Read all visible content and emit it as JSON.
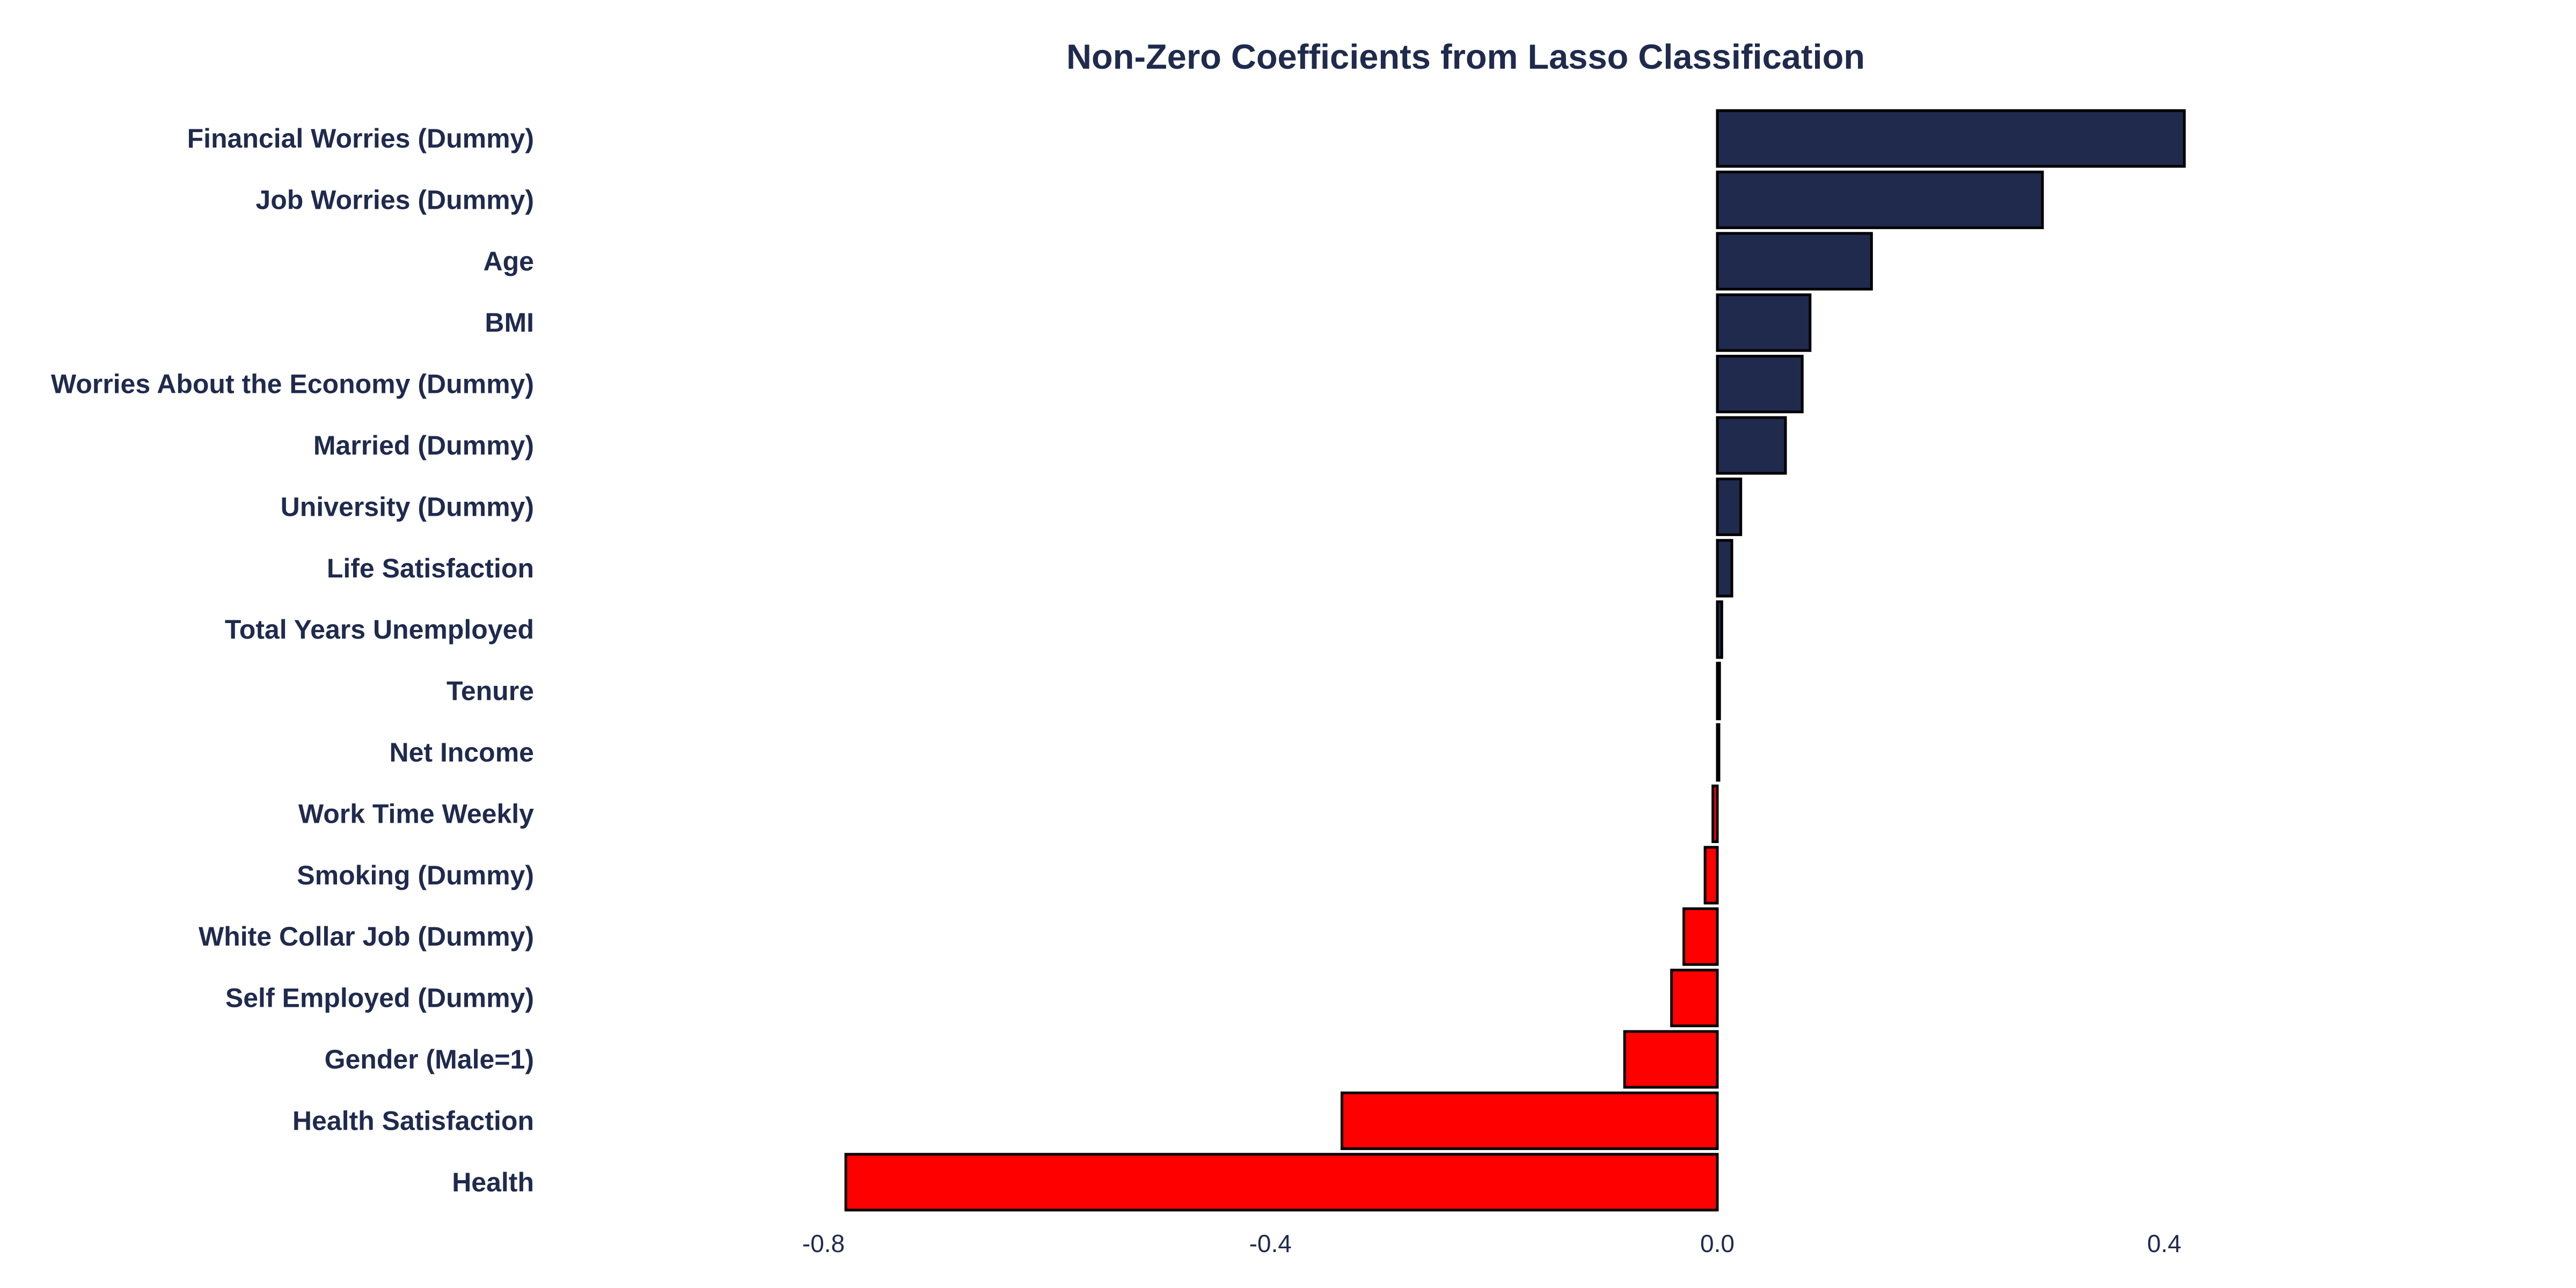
{
  "chart_data": {
    "type": "bar",
    "orientation": "horizontal",
    "title": "Non-Zero Coefficients from Lasso Classification",
    "xlabel": "",
    "ylabel": "",
    "xlim": [
      -0.8,
      0.6
    ],
    "xticks": [
      -0.8,
      -0.4,
      0.0,
      0.4
    ],
    "xtick_labels": [
      "-0.8",
      "-0.4",
      "0.0",
      "0.4"
    ],
    "grid": false,
    "legend": "none",
    "categories": [
      "Financial Worries (Dummy)",
      "Job Worries (Dummy)",
      "Age",
      "BMI",
      "Worries About the Economy (Dummy)",
      "Married (Dummy)",
      "University (Dummy)",
      "Life Satisfaction",
      "Total Years Unemployed",
      "Tenure",
      "Net Income",
      "Work Time Weekly",
      "Smoking (Dummy)",
      "White Collar Job (Dummy)",
      "Self Employed (Dummy)",
      "Gender (Male=1)",
      "Health Satisfaction",
      "Health"
    ],
    "values": [
      0.418,
      0.291,
      0.138,
      0.083,
      0.076,
      0.061,
      0.021,
      0.013,
      0.004,
      0.002,
      0.001,
      -0.004,
      -0.011,
      -0.03,
      -0.041,
      -0.083,
      -0.336,
      -0.78
    ],
    "colors": {
      "positive": "#1f2a4d",
      "negative": "#ff0000",
      "text": "#1f2a4d",
      "edge": "#000000"
    }
  }
}
